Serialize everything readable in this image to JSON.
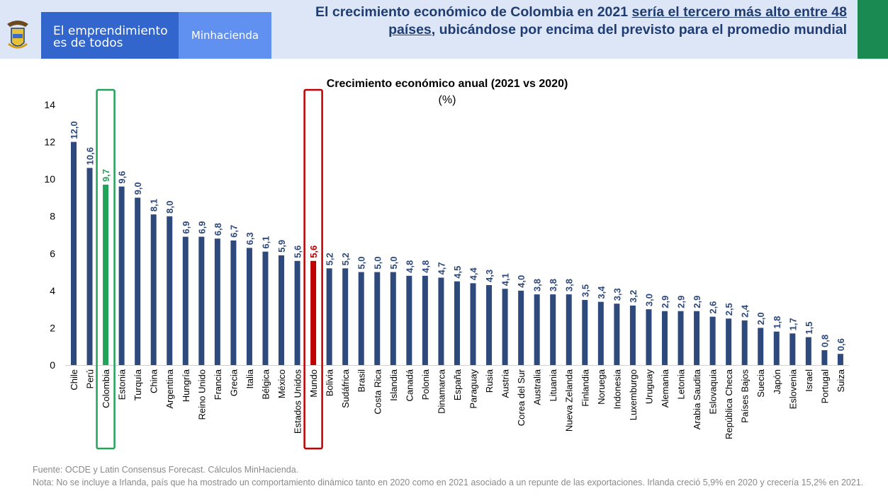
{
  "header": {
    "brand_line1": "El emprendimiento",
    "brand_line2": "es de todos",
    "ministry": "Minhacienda",
    "headline_part1": "El crecimiento económico de Colombia en 2021 ",
    "headline_underlined": "sería el tercero más alto entre 48 países",
    "headline_part2": ", ubicándose por encima del previsto para el promedio mundial",
    "crest_icon": "colombia-coat-of-arms-icon",
    "colors": {
      "brand": "#3366cc",
      "ministry": "#6191f0",
      "accent_green": "#1a8a52",
      "header_bg": "#dde6f7"
    }
  },
  "chart_data": {
    "type": "bar",
    "title": "Crecimiento económico anual (2021 vs 2020)",
    "subtitle": "(%)",
    "xlabel": "",
    "ylabel": "",
    "ylim": [
      0,
      14
    ],
    "yticks": [
      0,
      2,
      4,
      6,
      8,
      10,
      12,
      14
    ],
    "grid": false,
    "data_labels": true,
    "categories": [
      "Chile",
      "Perú",
      "Colombia",
      "Estonia",
      "Turquía",
      "China",
      "Argentina",
      "Hungría",
      "Reino Unido",
      "Francia",
      "Grecia",
      "Italia",
      "Bélgica",
      "México",
      "Estados Unidos",
      "Mundo",
      "Bolivia",
      "Sudáfrica",
      "Brasil",
      "Costa Rica",
      "Islandia",
      "Canadá",
      "Polonia",
      "Dinamarca",
      "España",
      "Paraguay",
      "Rusia",
      "Austria",
      "Corea del Sur",
      "Australia",
      "Lituania",
      "Nueva Zelanda",
      "Finlandia",
      "Noruega",
      "Indonesia",
      "Luxemburgo",
      "Uruguay",
      "Alemania",
      "Letonia",
      "Arabia Saudita",
      "Eslovaquia",
      "República Checa",
      "Países Bajos",
      "Suecia",
      "Japón",
      "Eslovenia",
      "Israel",
      "Portugal",
      "Suiza"
    ],
    "values": [
      12.0,
      10.6,
      9.7,
      9.6,
      9.0,
      8.1,
      8.0,
      6.9,
      6.9,
      6.8,
      6.7,
      6.3,
      6.1,
      5.9,
      5.6,
      5.6,
      5.2,
      5.2,
      5.0,
      5.0,
      5.0,
      4.8,
      4.8,
      4.7,
      4.5,
      4.4,
      4.3,
      4.1,
      4.0,
      3.8,
      3.8,
      3.8,
      3.5,
      3.4,
      3.3,
      3.2,
      3.0,
      2.9,
      2.9,
      2.9,
      2.6,
      2.5,
      2.4,
      2.0,
      1.8,
      1.7,
      1.5,
      0.8,
      0.6
    ],
    "colors": {
      "default": "#2e4a7d",
      "Colombia": "#22a35a",
      "Mundo": "#c00000"
    },
    "highlight_boxes": {
      "Colombia": "#22a35a",
      "Mundo": "#c00000"
    }
  },
  "footer": {
    "source": "Fuente: OCDE y Latin Consensus Forecast. Cálculos MinHacienda.",
    "note": "Nota: No se incluye a Irlanda, país que ha mostrado un comportamiento dinámico tanto en 2020 como en 2021 asociado a un repunte de las exportaciones. Irlanda creció 5,9% en 2020 y crecería 15,2% en 2021."
  }
}
